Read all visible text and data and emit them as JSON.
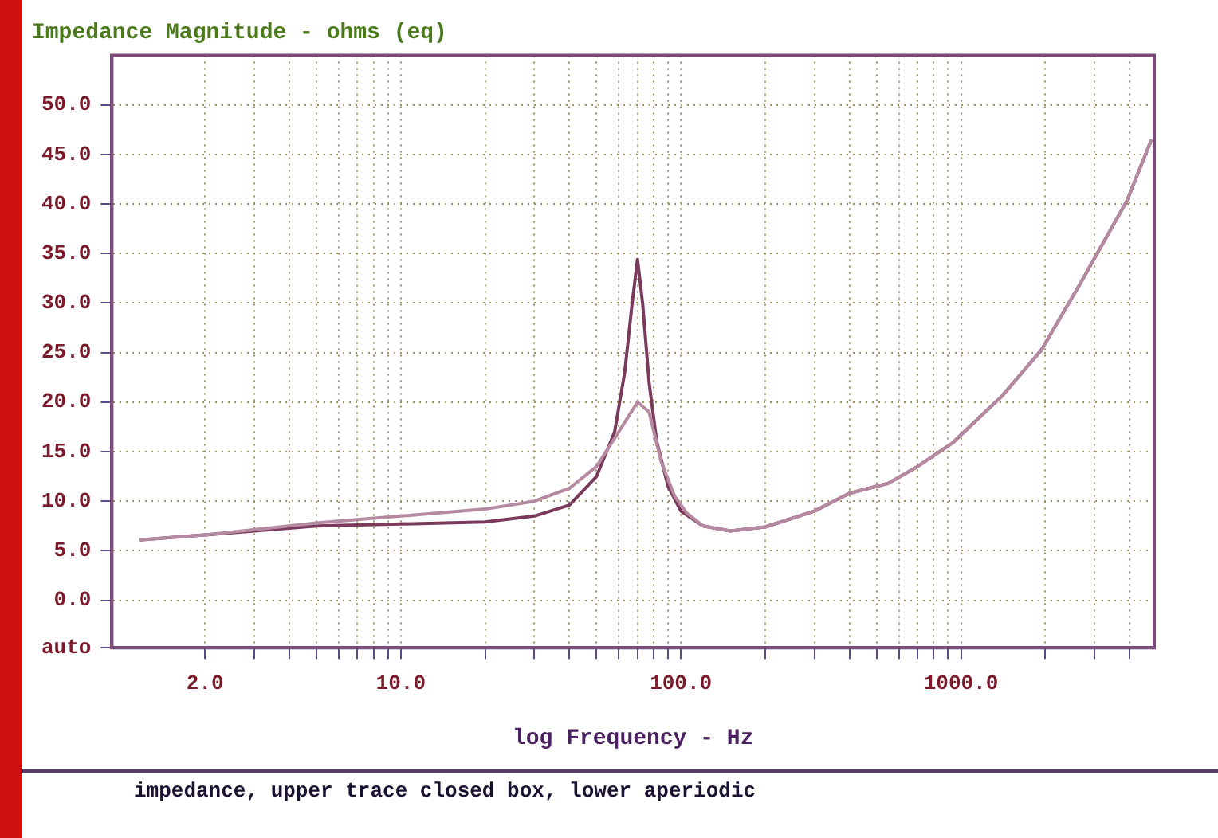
{
  "chart_data": {
    "type": "line",
    "title": "Impedance Magnitude - ohms (eq)",
    "xlabel": "log Frequency - Hz",
    "annotations": [
      "impedance, upper trace closed box, lower aperiodic"
    ],
    "log": "x",
    "xlim": [
      0.93,
      4900
    ],
    "xticks": [
      {
        "value": 2,
        "label": "2.0"
      },
      {
        "value": 3,
        "label": null
      },
      {
        "value": 4,
        "label": null
      },
      {
        "value": 5,
        "label": null
      },
      {
        "value": 6,
        "label": null
      },
      {
        "value": 7,
        "label": null
      },
      {
        "value": 8,
        "label": null
      },
      {
        "value": 9,
        "label": null
      },
      {
        "value": 10,
        "label": "10.0"
      },
      {
        "value": 20,
        "label": null
      },
      {
        "value": 30,
        "label": null
      },
      {
        "value": 40,
        "label": null
      },
      {
        "value": 50,
        "label": null
      },
      {
        "value": 60,
        "label": null
      },
      {
        "value": 70,
        "label": null
      },
      {
        "value": 80,
        "label": null
      },
      {
        "value": 90,
        "label": null
      },
      {
        "value": 100,
        "label": "100.0"
      },
      {
        "value": 200,
        "label": null
      },
      {
        "value": 300,
        "label": null
      },
      {
        "value": 400,
        "label": null
      },
      {
        "value": 500,
        "label": null
      },
      {
        "value": 600,
        "label": null
      },
      {
        "value": 700,
        "label": null
      },
      {
        "value": 800,
        "label": null
      },
      {
        "value": 900,
        "label": null
      },
      {
        "value": 1000,
        "label": "1000.0"
      },
      {
        "value": 2000,
        "label": null
      },
      {
        "value": 3000,
        "label": null
      },
      {
        "value": 4000,
        "label": null
      }
    ],
    "ylim": [
      -4.8,
      55
    ],
    "yticks": [
      {
        "value": -4.8,
        "label": "auto"
      },
      {
        "value": 0,
        "label": "0.0"
      },
      {
        "value": 5,
        "label": "5.0"
      },
      {
        "value": 10,
        "label": "10.0"
      },
      {
        "value": 15,
        "label": "15.0"
      },
      {
        "value": 20,
        "label": "20.0"
      },
      {
        "value": 25,
        "label": "25.0"
      },
      {
        "value": 30,
        "label": "30.0"
      },
      {
        "value": 35,
        "label": "35.0"
      },
      {
        "value": 40,
        "label": "40.0"
      },
      {
        "value": 45,
        "label": "45.0"
      },
      {
        "value": 50,
        "label": "50.0"
      }
    ],
    "grid": true,
    "legend": false,
    "marker": "none",
    "line_style": "solid",
    "series": [
      {
        "color": "#b58aa0",
        "x": [
          1.17,
          2,
          5,
          10,
          20,
          30,
          40,
          50,
          60,
          70,
          77,
          85,
          95,
          105,
          120,
          150,
          200,
          300,
          400,
          550,
          700,
          935,
          1400,
          1930,
          2660,
          3910,
          4790
        ],
        "values": [
          6.1,
          6.6,
          7.8,
          8.5,
          9.2,
          10,
          11.3,
          13.5,
          17,
          20,
          19,
          14,
          10.5,
          8.8,
          7.5,
          7.0,
          7.4,
          9,
          10.8,
          11.8,
          13.5,
          15.9,
          20.6,
          25.2,
          31.9,
          40.3,
          46.5
        ]
      },
      {
        "color": "#7a3a5c",
        "x": [
          1.17,
          2,
          5,
          10,
          20,
          30,
          40,
          50,
          58,
          63,
          67,
          70,
          73,
          77,
          82,
          90,
          100,
          120,
          150,
          200,
          300,
          400,
          550,
          700,
          935,
          1400,
          1930,
          2660,
          3910,
          4790
        ],
        "values": [
          6.1,
          6.6,
          7.5,
          7.7,
          7.9,
          8.5,
          9.6,
          12.5,
          17,
          23,
          30,
          34.4,
          30,
          22,
          16,
          11.5,
          9,
          7.5,
          7.0,
          7.4,
          9,
          10.8,
          11.8,
          13.5,
          15.9,
          20.6,
          25.2,
          31.9,
          40.3,
          46.5
        ]
      }
    ]
  }
}
